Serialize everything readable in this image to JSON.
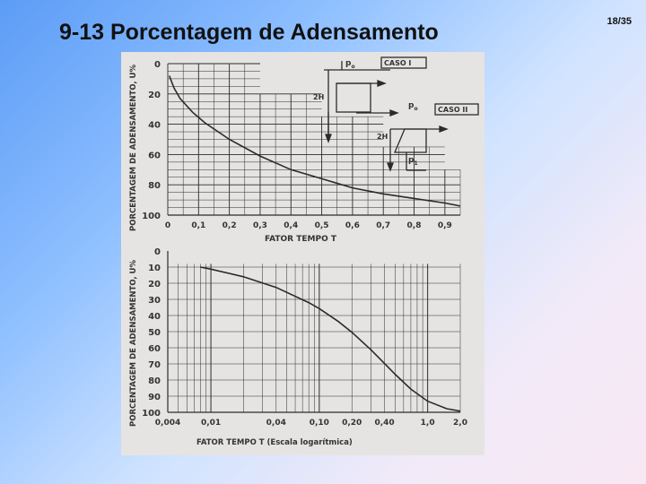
{
  "slide": {
    "title": "9-13 Porcentagem de Adensamento",
    "page": "18/35"
  },
  "colors": {
    "background_start": "#5c9cf6",
    "background_end": "#f8e8f4",
    "scan_paper": "#e6e4e2",
    "ink": "#2b2b2b"
  },
  "figure": {
    "top_chart": {
      "ylabel": "PORCENTAGEM DE ADENSAMENTO, U%",
      "xlabel": "FATOR TEMPO T",
      "y_ticks": [
        "0",
        "20",
        "40",
        "60",
        "80",
        "100"
      ],
      "x_ticks": [
        "0",
        "0,1",
        "0,2",
        "0,3",
        "0,4",
        "0,5",
        "0,6",
        "0,7",
        "0,8",
        "0,9"
      ],
      "case1_label": "CASO I",
      "case2_label": "CASO II",
      "load_label": "p",
      "load_sub_o": "o",
      "load_sub_1": "1",
      "height_label": "2H"
    },
    "bottom_chart": {
      "ylabel": "PORCENTAGEM DE ADENSAMENTO, U%",
      "xlabel": "FATOR TEMPO T (Escala logarítmica)",
      "y_ticks": [
        "0",
        "10",
        "20",
        "30",
        "40",
        "50",
        "60",
        "70",
        "80",
        "90",
        "100"
      ],
      "x_ticks": [
        "0,004",
        "0,01",
        "0,04",
        "0,10",
        "0,20",
        "0,40",
        "1,0",
        "2,0"
      ]
    }
  },
  "chart_data": [
    {
      "type": "line",
      "title": "",
      "xlabel": "FATOR TEMPO T",
      "ylabel": "PORCENTAGEM DE ADENSAMENTO, U%",
      "xlim": [
        0,
        0.95
      ],
      "ylim": [
        0,
        100
      ],
      "y_inverted": true,
      "grid": true,
      "series": [
        {
          "x": [
            0.005,
            0.02,
            0.04,
            0.08,
            0.12,
            0.2,
            0.3,
            0.4,
            0.5,
            0.6,
            0.7,
            0.8,
            0.9,
            0.95
          ],
          "values": [
            8,
            16,
            23,
            32,
            39,
            50,
            61,
            70,
            76,
            82,
            86,
            89,
            92,
            94
          ]
        }
      ]
    },
    {
      "type": "line",
      "title": "",
      "xlabel": "FATOR TEMPO T (Escala logarítmica)",
      "ylabel": "PORCENTAGEM DE ADENSAMENTO, U%",
      "x_scale": "log",
      "xlim": [
        0.004,
        2.0
      ],
      "ylim": [
        0,
        100
      ],
      "y_inverted": true,
      "grid": true,
      "series": [
        {
          "x": [
            0.008,
            0.01,
            0.02,
            0.04,
            0.08,
            0.1,
            0.15,
            0.2,
            0.3,
            0.4,
            0.5,
            0.7,
            1.0,
            1.5,
            2.0
          ],
          "values": [
            10,
            11.3,
            16,
            22.6,
            32,
            35.7,
            43.7,
            50.4,
            61.3,
            69.8,
            76.4,
            85.6,
            93.1,
            97.8,
            99.3
          ]
        }
      ]
    }
  ]
}
